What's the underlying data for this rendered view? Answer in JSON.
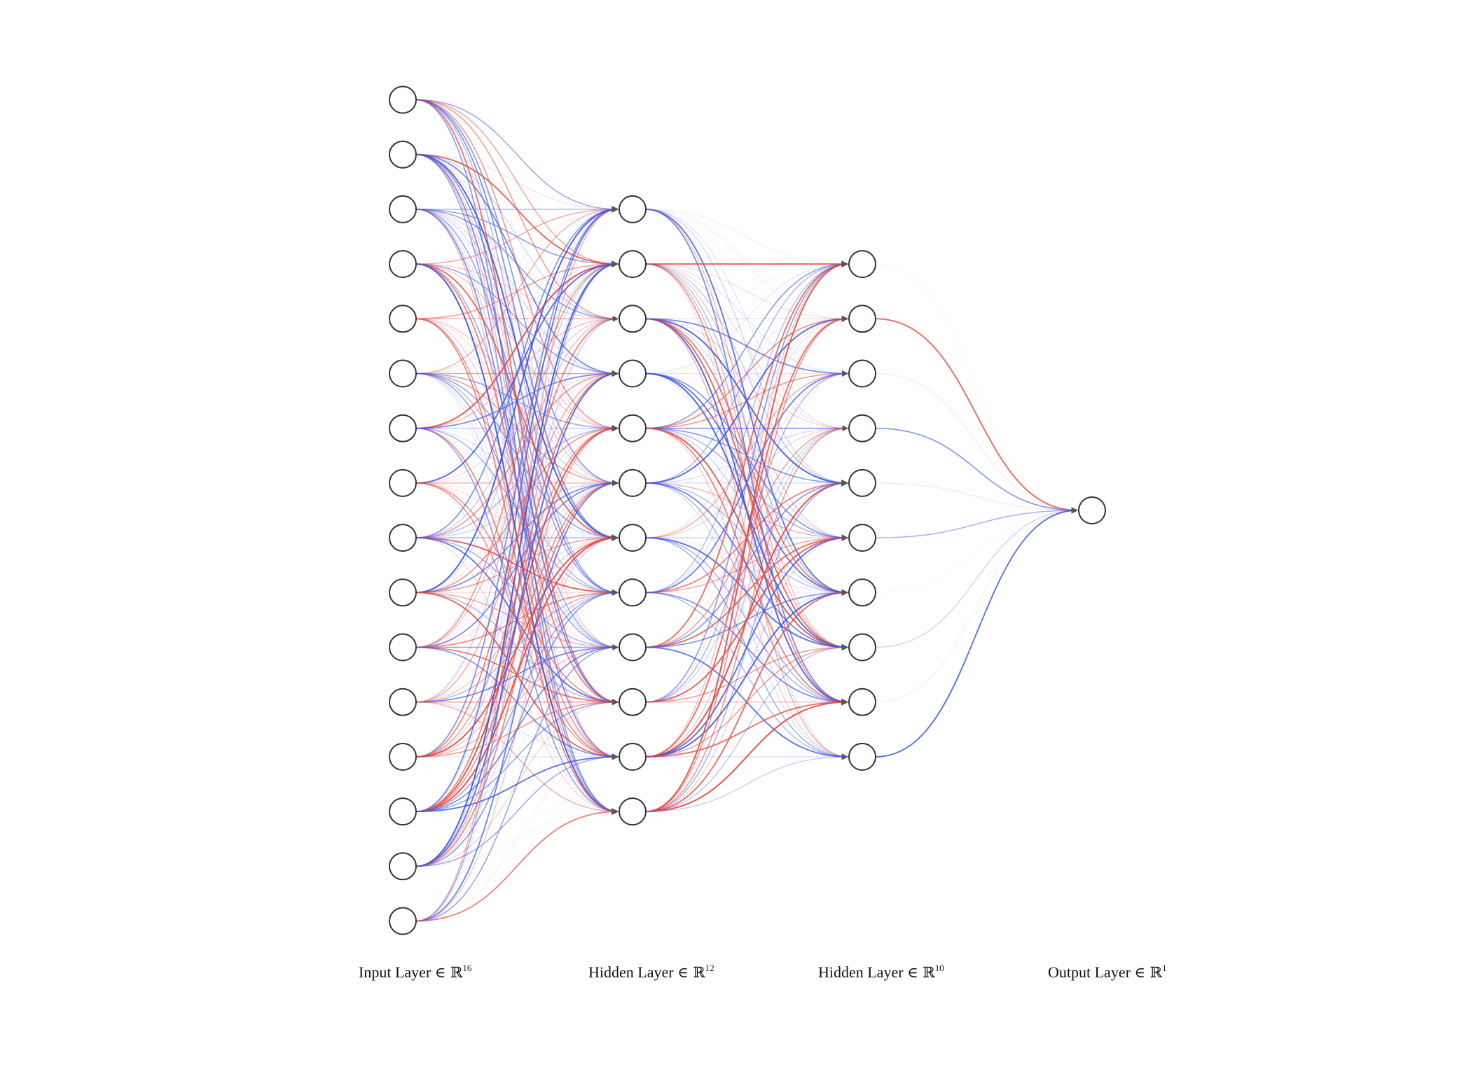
{
  "colors": {
    "positive_edge": "#e8473a",
    "negative_edge": "#3b55e6",
    "node_stroke": "#333333",
    "node_fill": "#ffffff",
    "background": "#ffffff"
  },
  "layers": [
    {
      "name": "Input Layer",
      "symbol": "∈ ℝ",
      "dim": "16",
      "nodes": 16
    },
    {
      "name": "Hidden Layer",
      "symbol": "∈ ℝ",
      "dim": "12",
      "nodes": 12
    },
    {
      "name": "Hidden Layer",
      "symbol": "∈ ℝ",
      "dim": "10",
      "nodes": 10
    },
    {
      "name": "Output Layer",
      "symbol": "∈ ℝ",
      "dim": "1",
      "nodes": 1
    }
  ]
}
